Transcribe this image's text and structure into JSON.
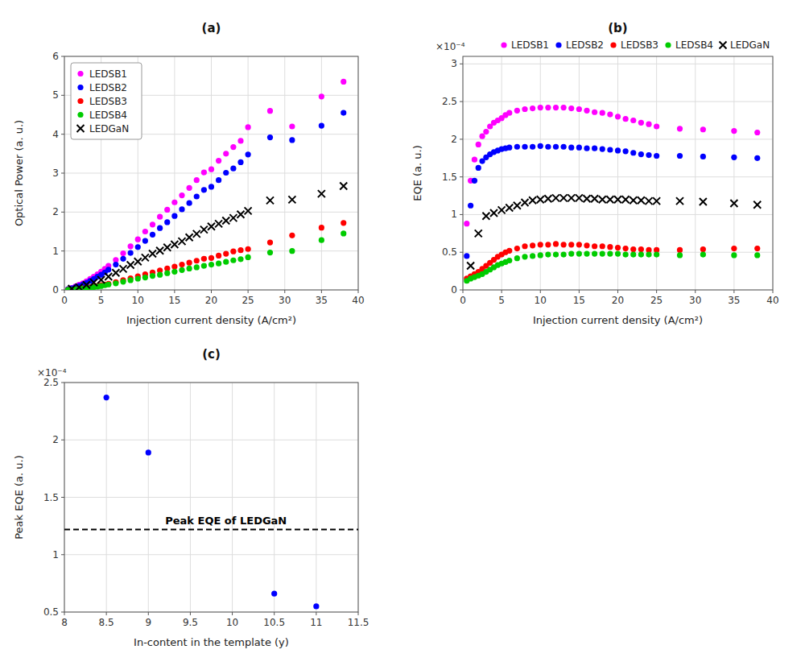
{
  "chart_data": [
    {
      "type": "scatter",
      "title": "(a)",
      "x_label": "Injection current density (A/cm²)",
      "y_label": "Optical Power (a. u.)",
      "xlim": [
        0,
        40
      ],
      "ylim": [
        0,
        6
      ],
      "xticks": [
        0,
        5,
        10,
        15,
        20,
        25,
        30,
        35,
        40
      ],
      "yticks": [
        0,
        1,
        2,
        3,
        4,
        5,
        6
      ],
      "grid": true,
      "legend": "upper left",
      "series": [
        {
          "name": "LEDSB1",
          "color": "#FF00FF",
          "marker": "circle",
          "x": [
            0.5,
            1.0,
            1.5,
            2.0,
            2.5,
            3.0,
            3.5,
            4.0,
            4.5,
            5.0,
            5.5,
            6.0,
            7.0,
            8.0,
            9.0,
            10.0,
            11.0,
            12.0,
            13.0,
            14.0,
            15.0,
            16.0,
            17.0,
            18.0,
            19.0,
            20.0,
            21.0,
            22.0,
            23.0,
            24.0,
            25.0,
            28.0,
            31.0,
            35.0,
            38.0
          ],
          "values": [
            0.02,
            0.05,
            0.09,
            0.13,
            0.17,
            0.22,
            0.28,
            0.34,
            0.4,
            0.47,
            0.54,
            0.62,
            0.77,
            0.94,
            1.12,
            1.3,
            1.5,
            1.68,
            1.88,
            2.06,
            2.25,
            2.43,
            2.62,
            2.82,
            3.02,
            3.1,
            3.32,
            3.5,
            3.67,
            3.83,
            4.18,
            4.6,
            4.2,
            4.97,
            5.35
          ]
        },
        {
          "name": "LEDSB2",
          "color": "#0000FF",
          "marker": "circle",
          "x": [
            0.5,
            1.0,
            1.5,
            2.0,
            2.5,
            3.0,
            3.5,
            4.0,
            4.5,
            5.0,
            5.5,
            6.0,
            7.0,
            8.0,
            9.0,
            10.0,
            11.0,
            12.0,
            13.0,
            14.0,
            15.0,
            16.0,
            17.0,
            18.0,
            19.0,
            20.0,
            21.0,
            22.0,
            23.0,
            24.0,
            25.0,
            28.0,
            31.0,
            35.0,
            38.0
          ],
          "values": [
            0.02,
            0.04,
            0.07,
            0.1,
            0.14,
            0.18,
            0.23,
            0.28,
            0.34,
            0.39,
            0.45,
            0.52,
            0.65,
            0.8,
            0.95,
            1.1,
            1.26,
            1.42,
            1.59,
            1.74,
            1.9,
            2.07,
            2.23,
            2.4,
            2.57,
            2.65,
            2.82,
            3.01,
            3.12,
            3.28,
            3.48,
            3.92,
            3.85,
            4.22,
            4.55
          ]
        },
        {
          "name": "LEDSB3",
          "color": "#FF0000",
          "marker": "circle",
          "x": [
            0.5,
            1.0,
            1.5,
            2.0,
            2.5,
            3.0,
            3.5,
            4.0,
            4.5,
            5.0,
            5.5,
            6.0,
            7.0,
            8.0,
            9.0,
            10.0,
            11.0,
            12.0,
            13.0,
            14.0,
            15.0,
            16.0,
            17.0,
            18.0,
            19.0,
            20.0,
            21.0,
            22.0,
            23.0,
            24.0,
            25.0,
            28.0,
            31.0,
            35.0,
            38.0
          ],
          "values": [
            0.005,
            0.01,
            0.02,
            0.03,
            0.04,
            0.055,
            0.07,
            0.085,
            0.1,
            0.12,
            0.14,
            0.16,
            0.2,
            0.25,
            0.3,
            0.35,
            0.4,
            0.45,
            0.5,
            0.55,
            0.6,
            0.65,
            0.7,
            0.75,
            0.8,
            0.82,
            0.88,
            0.93,
            0.99,
            1.02,
            1.05,
            1.22,
            1.4,
            1.6,
            1.72
          ]
        },
        {
          "name": "LEDSB4",
          "color": "#00CC00",
          "marker": "circle",
          "x": [
            0.5,
            1.0,
            1.5,
            2.0,
            2.5,
            3.0,
            3.5,
            4.0,
            4.5,
            5.0,
            5.5,
            6.0,
            7.0,
            8.0,
            9.0,
            10.0,
            11.0,
            12.0,
            13.0,
            14.0,
            15.0,
            16.0,
            17.0,
            18.0,
            19.0,
            20.0,
            21.0,
            22.0,
            23.0,
            24.0,
            25.0,
            28.0,
            31.0,
            35.0,
            38.0
          ],
          "values": [
            0.005,
            0.01,
            0.015,
            0.02,
            0.03,
            0.04,
            0.055,
            0.07,
            0.085,
            0.1,
            0.12,
            0.14,
            0.17,
            0.21,
            0.25,
            0.29,
            0.32,
            0.36,
            0.39,
            0.43,
            0.47,
            0.51,
            0.55,
            0.58,
            0.62,
            0.65,
            0.68,
            0.72,
            0.76,
            0.79,
            0.84,
            0.96,
            1.0,
            1.28,
            1.45
          ]
        },
        {
          "name": "LEDGaN",
          "color": "#000000",
          "marker": "x",
          "x": [
            1.0,
            2.0,
            3.0,
            4.0,
            5.0,
            6.0,
            7.0,
            8.0,
            9.0,
            10.0,
            11.0,
            12.0,
            13.0,
            14.0,
            15.0,
            16.0,
            17.0,
            18.0,
            19.0,
            20.0,
            21.0,
            22.0,
            23.0,
            24.0,
            25.0,
            28.0,
            31.0,
            35.0,
            38.0
          ],
          "values": [
            0.03,
            0.07,
            0.13,
            0.19,
            0.26,
            0.34,
            0.44,
            0.54,
            0.64,
            0.73,
            0.83,
            0.93,
            1.01,
            1.09,
            1.17,
            1.25,
            1.35,
            1.44,
            1.55,
            1.63,
            1.7,
            1.78,
            1.85,
            1.94,
            2.03,
            2.3,
            2.32,
            2.47,
            2.67
          ]
        }
      ]
    },
    {
      "type": "scatter",
      "title": "(b)",
      "x_label": "Injection current density (A/cm²)",
      "y_label": "EQE (a. u.)",
      "xlim": [
        0,
        40
      ],
      "ylim": [
        0,
        0.00031
      ],
      "xticks": [
        0,
        5,
        10,
        15,
        20,
        25,
        30,
        35,
        40
      ],
      "yticks": [
        0,
        {
          "value": 5e-05,
          "label": "0.5"
        },
        {
          "value": 0.0001,
          "label": "1"
        },
        {
          "value": 0.00015,
          "label": "1.5"
        },
        {
          "value": 0.0002,
          "label": "2"
        },
        {
          "value": 0.00025,
          "label": "2.5"
        },
        {
          "value": 0.0003,
          "label": "3"
        }
      ],
      "annotations": [
        {
          "text": "×10⁻⁴"
        }
      ],
      "grid": true,
      "legend": "top",
      "series": [
        {
          "name": "LEDSB1",
          "color": "#FF00FF",
          "marker": "circle",
          "x": [
            0.5,
            1.0,
            1.5,
            2.0,
            2.5,
            3.0,
            3.5,
            4.0,
            4.5,
            5.0,
            5.5,
            6.0,
            7.0,
            8.0,
            9.0,
            10.0,
            11.0,
            12.0,
            13.0,
            14.0,
            15.0,
            16.0,
            17.0,
            18.0,
            19.0,
            20.0,
            21.0,
            22.0,
            23.0,
            24.0,
            25.0,
            28.0,
            31.0,
            35.0,
            38.0
          ],
          "values": [
            8.8e-05,
            0.000145,
            0.000173,
            0.000193,
            0.000204,
            0.00021,
            0.000217,
            0.000222,
            0.000225,
            0.000228,
            0.000232,
            0.000235,
            0.000238,
            0.00024,
            0.000241,
            0.000242,
            0.000242,
            0.000242,
            0.000242,
            0.000241,
            0.00024,
            0.000238,
            0.000236,
            0.000235,
            0.000233,
            0.00023,
            0.000227,
            0.000225,
            0.000222,
            0.00022,
            0.000217,
            0.000214,
            0.000213,
            0.000211,
            0.000209
          ]
        },
        {
          "name": "LEDSB2",
          "color": "#0000FF",
          "marker": "circle",
          "x": [
            0.5,
            1.0,
            1.5,
            2.0,
            2.5,
            3.0,
            3.5,
            4.0,
            4.5,
            5.0,
            5.5,
            6.0,
            7.0,
            8.0,
            9.0,
            10.0,
            11.0,
            12.0,
            13.0,
            14.0,
            15.0,
            16.0,
            17.0,
            18.0,
            19.0,
            20.0,
            21.0,
            22.0,
            23.0,
            24.0,
            25.0,
            28.0,
            31.0,
            35.0,
            38.0
          ],
          "values": [
            4.5e-05,
            0.000112,
            0.000145,
            0.000162,
            0.000171,
            0.000176,
            0.00018,
            0.000183,
            0.000185,
            0.000187,
            0.000188,
            0.000189,
            0.00019,
            0.00019,
            0.00019,
            0.000191,
            0.00019,
            0.00019,
            0.00019,
            0.000189,
            0.000189,
            0.000188,
            0.000188,
            0.000187,
            0.000186,
            0.000185,
            0.000184,
            0.000182,
            0.00018,
            0.000179,
            0.000178,
            0.000178,
            0.000177,
            0.000176,
            0.000175
          ]
        },
        {
          "name": "LEDSB3",
          "color": "#FF0000",
          "marker": "circle",
          "x": [
            0.5,
            1.0,
            1.5,
            2.0,
            2.5,
            3.0,
            3.5,
            4.0,
            4.5,
            5.0,
            5.5,
            6.0,
            7.0,
            8.0,
            9.0,
            10.0,
            11.0,
            12.0,
            13.0,
            14.0,
            15.0,
            16.0,
            17.0,
            18.0,
            19.0,
            20.0,
            21.0,
            22.0,
            23.0,
            24.0,
            25.0,
            28.0,
            31.0,
            35.0,
            38.0
          ],
          "values": [
            1.5e-05,
            1.8e-05,
            2.1e-05,
            2.4e-05,
            2.8e-05,
            3.2e-05,
            3.6e-05,
            4e-05,
            4.4e-05,
            4.7e-05,
            5e-05,
            5.2e-05,
            5.5e-05,
            5.8e-05,
            5.9e-05,
            6e-05,
            6e-05,
            6.1e-05,
            6e-05,
            6e-05,
            6e-05,
            5.9e-05,
            5.8e-05,
            5.8e-05,
            5.7e-05,
            5.6e-05,
            5.5e-05,
            5.4e-05,
            5.4e-05,
            5.3e-05,
            5.3e-05,
            5.3e-05,
            5.4e-05,
            5.5e-05,
            5.5e-05
          ]
        },
        {
          "name": "LEDSB4",
          "color": "#00CC00",
          "marker": "circle",
          "x": [
            0.5,
            1.0,
            1.5,
            2.0,
            2.5,
            3.0,
            3.5,
            4.0,
            4.5,
            5.0,
            5.5,
            6.0,
            7.0,
            8.0,
            9.0,
            10.0,
            11.0,
            12.0,
            13.0,
            14.0,
            15.0,
            16.0,
            17.0,
            18.0,
            19.0,
            20.0,
            21.0,
            22.0,
            23.0,
            24.0,
            25.0,
            28.0,
            31.0,
            35.0,
            38.0
          ],
          "values": [
            1.2e-05,
            1.5e-05,
            1.7e-05,
            1.9e-05,
            2.1e-05,
            2.4e-05,
            2.7e-05,
            3e-05,
            3.3e-05,
            3.5e-05,
            3.7e-05,
            3.9e-05,
            4.2e-05,
            4.4e-05,
            4.5e-05,
            4.6e-05,
            4.7e-05,
            4.7e-05,
            4.7e-05,
            4.8e-05,
            4.8e-05,
            4.8e-05,
            4.8e-05,
            4.8e-05,
            4.8e-05,
            4.8e-05,
            4.7e-05,
            4.7e-05,
            4.7e-05,
            4.7e-05,
            4.7e-05,
            4.6e-05,
            4.7e-05,
            4.6e-05,
            4.6e-05
          ]
        },
        {
          "name": "LEDGaN",
          "color": "#000000",
          "marker": "x",
          "x": [
            1.0,
            2.0,
            3.0,
            4.0,
            5.0,
            6.0,
            7.0,
            8.0,
            9.0,
            10.0,
            11.0,
            12.0,
            13.0,
            14.0,
            15.0,
            16.0,
            17.0,
            18.0,
            19.0,
            20.0,
            21.0,
            22.0,
            23.0,
            24.0,
            25.0,
            28.0,
            31.0,
            35.0,
            38.0
          ],
          "values": [
            3.2e-05,
            7.5e-05,
            9.8e-05,
            0.000102,
            0.000106,
            0.000109,
            0.000112,
            0.000116,
            0.000119,
            0.00012,
            0.000121,
            0.000122,
            0.000122,
            0.000122,
            0.000122,
            0.000121,
            0.000121,
            0.00012,
            0.00012,
            0.00012,
            0.00012,
            0.000119,
            0.000119,
            0.000118,
            0.000118,
            0.000118,
            0.000117,
            0.000115,
            0.000113
          ]
        }
      ]
    },
    {
      "type": "scatter",
      "title": "(c)",
      "x_label": "In-content in the template (y)",
      "y_label": "Peak EQE (a. u.)",
      "xlim": [
        8,
        11.5
      ],
      "ylim": [
        5e-05,
        0.00025
      ],
      "xticks": [
        8,
        8.5,
        9,
        9.5,
        10,
        10.5,
        11,
        11.5
      ],
      "yticks": [
        {
          "value": 5e-05,
          "label": "0.5"
        },
        {
          "value": 0.0001,
          "label": "1"
        },
        {
          "value": 0.00015,
          "label": "1.5"
        },
        {
          "value": 0.0002,
          "label": "2"
        },
        {
          "value": 0.00025,
          "label": "2.5"
        }
      ],
      "annotations": [
        {
          "text": "×10⁻⁴"
        }
      ],
      "grid": true,
      "color": "#0000FF",
      "marker": "circle",
      "x": [
        8.5,
        9.0,
        10.5,
        11.0
      ],
      "values": [
        0.000237,
        0.000189,
        6.6e-05,
        5.5e-05
      ],
      "reference_lines": [
        {
          "y": 0.000122,
          "label": "Peak EQE of LEDGaN",
          "color": "#000000",
          "line_style": "dashed"
        }
      ]
    }
  ]
}
